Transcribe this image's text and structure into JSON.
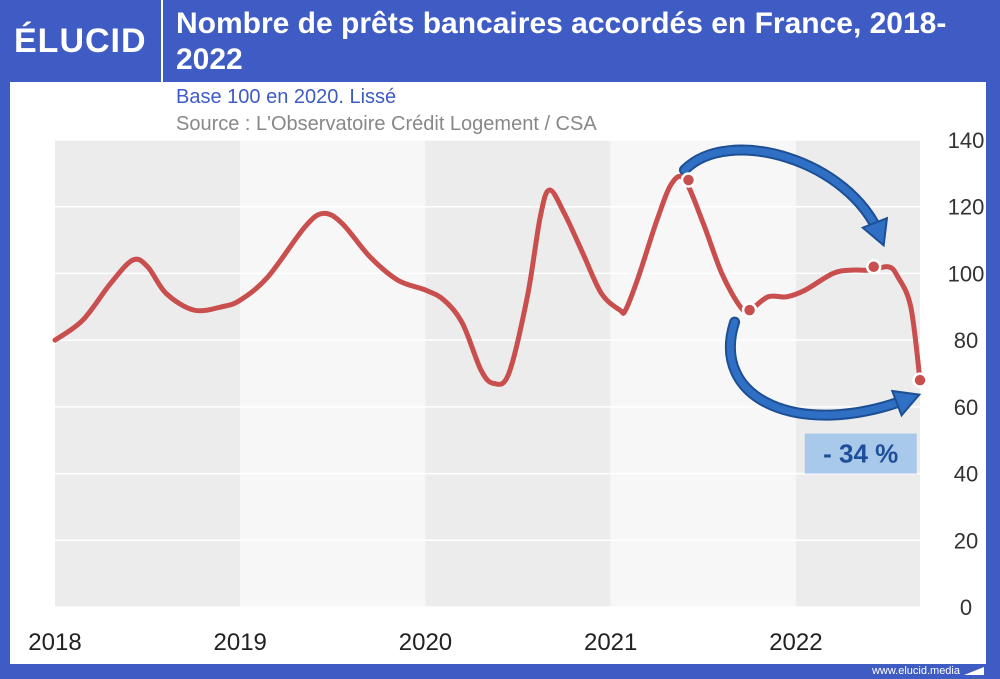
{
  "header": {
    "logo": "ÉLUCID",
    "title": "Nombre de prêts bancaires accordés en France, 2018-2022",
    "subtitle": "Base 100 en 2020. Lissé",
    "source": "Source : L'Observatoire Crédit Logement / CSA"
  },
  "footer": {
    "url": "www.elucid.media"
  },
  "colors": {
    "brand": "#3f5bc4",
    "line": "#c94f4f",
    "arrow": "#2f6fc4",
    "band": "#ececec",
    "annotation_bg": "#a9c9ea",
    "annotation_text": "#1e4f9b"
  },
  "chart_data": {
    "type": "line",
    "title": "Nombre de prêts bancaires accordés en France, 2018-2022",
    "subtitle": "Base 100 en 2020. Lissé",
    "xlabel": "",
    "ylabel": "",
    "xlim": [
      2018.0,
      2022.67
    ],
    "ylim": [
      0,
      140
    ],
    "y_axis_position": "right",
    "x_ticks": [
      "2018",
      "2019",
      "2020",
      "2021",
      "2022"
    ],
    "y_ticks": [
      "0",
      "20",
      "40",
      "60",
      "80",
      "100",
      "120",
      "140"
    ],
    "grid": true,
    "alternating_year_bands": true,
    "series": [
      {
        "x": [
          2018.0,
          2018.15,
          2018.3,
          2018.42,
          2018.5,
          2018.6,
          2018.75,
          2018.9,
          2019.0,
          2019.15,
          2019.35,
          2019.45,
          2019.55,
          2019.7,
          2019.85,
          2020.0,
          2020.1,
          2020.2,
          2020.3,
          2020.37,
          2020.45,
          2020.55,
          2020.62,
          2020.67,
          2020.75,
          2020.85,
          2020.95,
          2021.05,
          2021.08,
          2021.15,
          2021.25,
          2021.33,
          2021.4,
          2021.5,
          2021.6,
          2021.7,
          2021.75,
          2021.85,
          2021.95,
          2022.05,
          2022.2,
          2022.3,
          2022.4,
          2022.5,
          2022.55,
          2022.62,
          2022.67
        ],
        "values": [
          80,
          86,
          97,
          104,
          102,
          94,
          89,
          90,
          92,
          99,
          114,
          118,
          115,
          105,
          98,
          95,
          92,
          85,
          71,
          67,
          70,
          93,
          117,
          125,
          118,
          106,
          94,
          89,
          89,
          99,
          116,
          127,
          128,
          115,
          100,
          90,
          89,
          93,
          93,
          95,
          100,
          101,
          101,
          102,
          99,
          90,
          68
        ]
      }
    ],
    "highlight_points": [
      {
        "x": 2021.42,
        "y": 128
      },
      {
        "x": 2021.75,
        "y": 89
      },
      {
        "x": 2022.42,
        "y": 102
      },
      {
        "x": 2022.67,
        "y": 68
      }
    ],
    "annotations": [
      {
        "text": "- 34 %",
        "x": 2022.35,
        "y": 46
      }
    ]
  }
}
